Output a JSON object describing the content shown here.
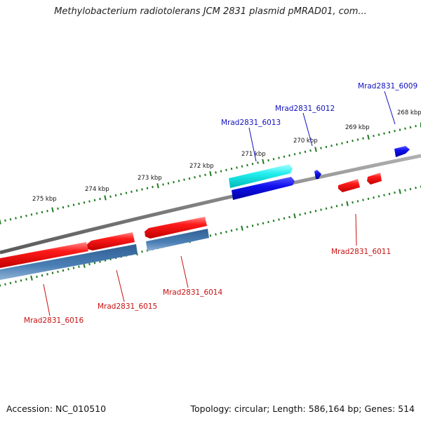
{
  "title": "Methylobacterium radiotolerans JCM 2831 plasmid pMRAD01, com...",
  "footer": {
    "accession": "Accession: NC_010510",
    "summary": "Topology: circular; Length: 586,164 bp; Genes: 514"
  },
  "colors": {
    "backbone": "#808080",
    "ticks": "#1e7a1e",
    "label_forward": "#1010c0",
    "label_reverse": "#c81010",
    "cds_red": "#ff1a1a",
    "cds_steel": "#4a7fb5",
    "cds_blue": "#1010ee",
    "cds_cyan": "#22eeee"
  },
  "kbp_labels": [
    "268 kbp",
    "269 kbp",
    "270 kbp",
    "271 kbp",
    "272 kbp",
    "273 kbp",
    "274 kbp",
    "275 kbp"
  ],
  "genes": [
    {
      "label": "Mrad2831_6009",
      "strand": "forward"
    },
    {
      "label": "Mrad2831_6012",
      "strand": "forward"
    },
    {
      "label": "Mrad2831_6013",
      "strand": "forward"
    },
    {
      "label": "Mrad2831_6011",
      "strand": "reverse"
    },
    {
      "label": "Mrad2831_6014",
      "strand": "reverse"
    },
    {
      "label": "Mrad2831_6015",
      "strand": "reverse"
    },
    {
      "label": "Mrad2831_6016",
      "strand": "reverse"
    }
  ]
}
